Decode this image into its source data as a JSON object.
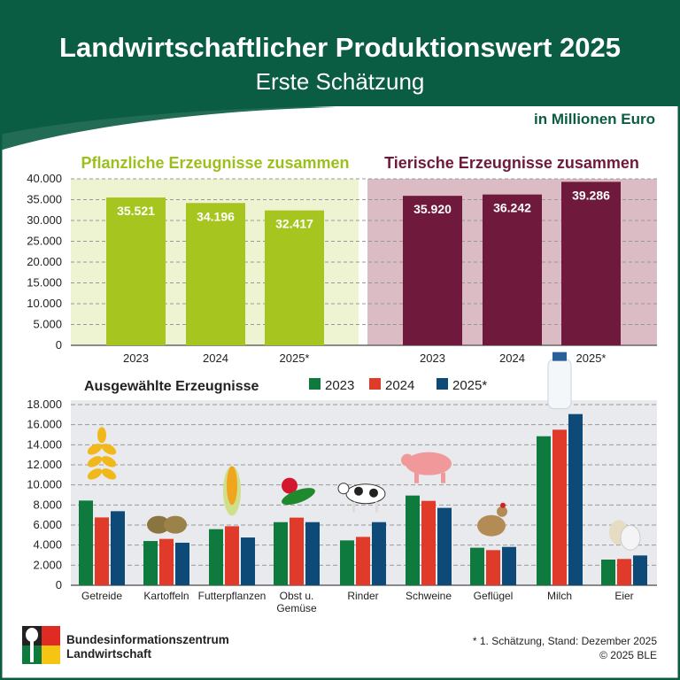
{
  "header": {
    "title": "Landwirtschaftlicher Produktionswert 2025",
    "subtitle": "Erste Schätzung",
    "unit": "in Millionen Euro"
  },
  "colors": {
    "header_green": "#0a5c43",
    "plant": "#a7c51f",
    "plant_bg": "#eef3d2",
    "animal": "#6f1a3c",
    "animal_bg": "#dcbcc4",
    "y2023": "#0f7a3e",
    "y2024": "#e03a2a",
    "y2025": "#0e4a78",
    "panel_bg": "#e9eaee"
  },
  "chart_data": [
    {
      "type": "bar",
      "title": "",
      "ylim": [
        0,
        40000
      ],
      "yticks": [
        "0",
        "5.000",
        "10.000",
        "15.000",
        "20.000",
        "25.000",
        "30.000",
        "35.000",
        "40.000"
      ],
      "groups": [
        {
          "name": "Pflanzliche Erzeugnisse zusammen",
          "categories": [
            "2023",
            "2024",
            "2025*"
          ],
          "values": [
            35521,
            34196,
            32417
          ],
          "labels": [
            "35.521",
            "34.196",
            "32.417"
          ]
        },
        {
          "name": "Tierische Erzeugnisse zusammen",
          "categories": [
            "2023",
            "2024",
            "2025*"
          ],
          "values": [
            35920,
            36242,
            39286
          ],
          "labels": [
            "35.920",
            "36.242",
            "39.286"
          ]
        }
      ],
      "grid": true
    },
    {
      "type": "bar",
      "title": "Ausgewählte Erzeugnisse",
      "ylim": [
        0,
        18000
      ],
      "yticks": [
        "0",
        "2.000",
        "4.000",
        "6.000",
        "8.000",
        "10.000",
        "12.000",
        "14.000",
        "16.000",
        "18.000"
      ],
      "categories": [
        "Getreide",
        "Kartoffeln",
        "Futterpflanzen",
        "Obst u. Gemüse",
        "Rinder",
        "Schweine",
        "Geflügel",
        "Milch",
        "Eier"
      ],
      "icons": [
        "wheat-icon",
        "potato-icon",
        "corn-icon",
        "apple-cucumber-icon",
        "cow-icon",
        "pig-icon",
        "chicken-icon",
        "milk-bottle-icon",
        "eggs-icon"
      ],
      "series": [
        {
          "name": "2023",
          "values": [
            8440,
            4410,
            5590,
            6290,
            4470,
            8940,
            3740,
            14850,
            2560
          ]
        },
        {
          "name": "2024",
          "values": [
            6760,
            4620,
            5880,
            6740,
            4820,
            8410,
            3500,
            15500,
            2620
          ]
        },
        {
          "name": "2025*",
          "values": [
            7380,
            4240,
            4760,
            6290,
            6290,
            7710,
            3820,
            17060,
            2970
          ]
        }
      ],
      "legend": "top",
      "grid": true
    }
  ],
  "footer": {
    "org_line1": "Bundesinformationszentrum",
    "org_line2": "Landwirtschaft",
    "note": "* 1. Schätzung, Stand: Dezember 2025",
    "copyright": "© 2025 BLE"
  }
}
